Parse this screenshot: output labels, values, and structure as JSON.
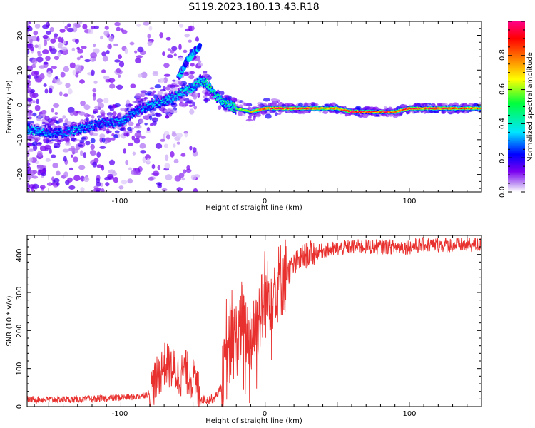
{
  "title": "S119.2023.180.13.43.R18",
  "panels": {
    "top": {
      "xlabel": "Height of straight line (km)",
      "ylabel": "Frequency (Hz)",
      "xticks": [
        "-100",
        "0",
        "100"
      ],
      "yticks": [
        "-20",
        "-10",
        "0",
        "10",
        "20"
      ]
    },
    "bottom": {
      "xlabel": "Height of straight line (km)",
      "ylabel": "SNR (10 * v/v)",
      "xticks": [
        "-100",
        "0",
        "100"
      ],
      "yticks": [
        "0",
        "100",
        "200",
        "300",
        "400"
      ]
    }
  },
  "colorbar": {
    "label": "Normalized spectral amplitude",
    "ticks": [
      "0.0",
      "0.2",
      "0.4",
      "0.6",
      "0.8"
    ]
  },
  "colors": {
    "snr_line": "#e8312e",
    "colormap": [
      "#ffffff",
      "#c9a8f5",
      "#7a00f0",
      "#0000ff",
      "#00e6ff",
      "#00ff3c",
      "#ffff00",
      "#ff8000",
      "#ff0000",
      "#ff0088"
    ]
  },
  "chart_data": [
    {
      "type": "heatmap",
      "title": "S119.2023.180.13.43.R18",
      "xlabel": "Height of straight line (km)",
      "ylabel": "Frequency (Hz)",
      "xlim": [
        -165,
        150
      ],
      "ylim": [
        -25,
        24
      ],
      "colorbar_range": [
        0,
        1
      ],
      "ridge": {
        "x": [
          -165,
          -150,
          -140,
          -130,
          -120,
          -110,
          -100,
          -90,
          -80,
          -70,
          -60,
          -50,
          -45,
          -40,
          -35,
          -30,
          -25,
          -20,
          -10,
          0,
          10,
          20,
          30,
          40,
          50,
          60,
          70,
          80,
          85,
          90,
          100,
          110,
          120,
          130,
          140,
          150
        ],
        "y": [
          -7,
          -8,
          -8,
          -7,
          -6,
          -5,
          -5,
          -2,
          0,
          1,
          3,
          5,
          7,
          6,
          3,
          1,
          0,
          -1,
          -2,
          -1,
          -1,
          -1,
          -1,
          -1,
          -1,
          -2,
          -2,
          -2,
          -2,
          -2,
          -1,
          -1,
          -1,
          -1,
          -1,
          -1
        ],
        "amplitude": [
          0.4,
          0.3,
          0.3,
          0.35,
          0.3,
          0.3,
          0.35,
          0.3,
          0.35,
          0.35,
          0.4,
          0.4,
          0.4,
          0.5,
          0.45,
          0.45,
          0.5,
          0.55,
          0.7,
          0.9,
          0.95,
          0.95,
          0.9,
          0.85,
          0.8,
          0.95,
          0.9,
          0.85,
          0.95,
          0.8,
          0.9,
          0.85,
          0.9,
          0.85,
          0.85,
          0.8
        ]
      },
      "branch": {
        "x": [
          -60,
          -55,
          -50,
          -45
        ],
        "y": [
          8,
          12,
          15,
          17
        ]
      }
    },
    {
      "type": "line",
      "xlabel": "Height of straight line (km)",
      "ylabel": "SNR (10 * v/v)",
      "xlim": [
        -165,
        150
      ],
      "ylim": [
        0,
        450
      ],
      "x": [
        -165,
        -150,
        -130,
        -110,
        -100,
        -90,
        -80,
        -75,
        -70,
        -65,
        -60,
        -55,
        -50,
        -45,
        -40,
        -35,
        -30,
        -25,
        -20,
        -15,
        -10,
        -5,
        0,
        5,
        10,
        15,
        20,
        25,
        30,
        40,
        50,
        60,
        70,
        80,
        90,
        100,
        110,
        120,
        130,
        140,
        150
      ],
      "y": [
        15,
        15,
        15,
        18,
        20,
        22,
        30,
        60,
        100,
        90,
        70,
        80,
        60,
        20,
        15,
        20,
        50,
        150,
        180,
        200,
        180,
        230,
        280,
        300,
        330,
        350,
        370,
        390,
        400,
        410,
        415,
        420,
        420,
        420,
        420,
        420,
        425,
        425,
        425,
        425,
        425
      ]
    }
  ]
}
